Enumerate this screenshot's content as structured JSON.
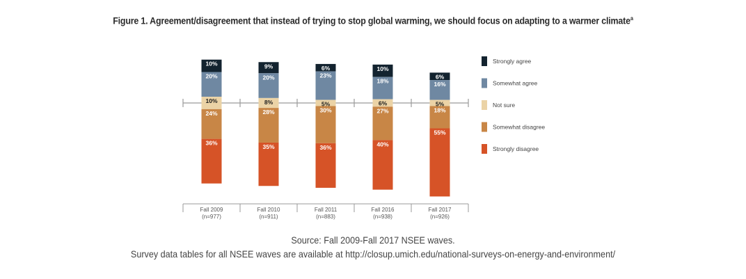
{
  "chart_data": {
    "type": "bar",
    "stacked": true,
    "diverging": true,
    "title": "Figure 1. Agreement/disagreement that instead of trying to stop global warming, we should focus on adapting to a warmer climate",
    "title_superscript": "a",
    "categories": [
      "Fall 2009",
      "Fall 2010",
      "Fall 2011",
      "Fall 2016",
      "Fall 2017"
    ],
    "sample_sizes": [
      "(n=977)",
      "(n=911)",
      "(n=883)",
      "(n=938)",
      "(n=926)"
    ],
    "series": [
      {
        "name": "Strongly agree",
        "color": "#13232f",
        "text_color": "#ffffff",
        "values": [
          10,
          9,
          6,
          10,
          6
        ]
      },
      {
        "name": "Somewhat agree",
        "color": "#6f88a2",
        "text_color": "#ffffff",
        "values": [
          20,
          20,
          23,
          18,
          16
        ]
      },
      {
        "name": "Not sure",
        "color": "#ebd3a6",
        "text_color": "#1c1c1c",
        "values": [
          10,
          8,
          5,
          6,
          5
        ]
      },
      {
        "name": "Somewhat disagree",
        "color": "#c88646",
        "text_color": "#ffffff",
        "values": [
          24,
          28,
          30,
          27,
          18
        ]
      },
      {
        "name": "Strongly disagree",
        "color": "#d65327",
        "text_color": "#ffffff",
        "values": [
          36,
          35,
          36,
          40,
          55
        ]
      }
    ],
    "value_suffix": "%",
    "legend_position": "right",
    "axis_color": "#9a9a9a",
    "xlabel": "",
    "ylabel": ""
  },
  "source": {
    "line1": "Source: Fall 2009-Fall 2017 NSEE waves.",
    "line2": "Survey data tables for all NSEE waves are available at http://closup.umich.edu/national-surveys-on-energy-and-environment/"
  }
}
